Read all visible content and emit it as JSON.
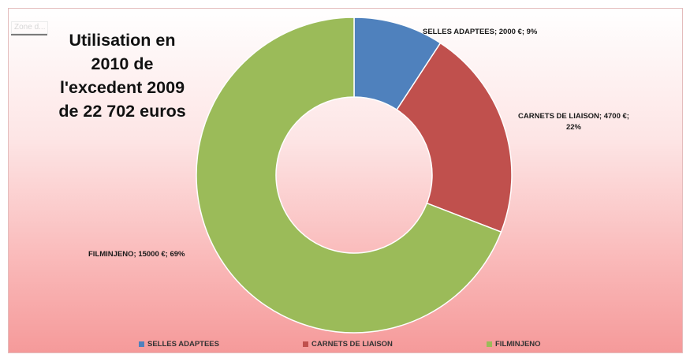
{
  "zone_label": "Zone d...",
  "chart_data": {
    "type": "donut",
    "title": "Utilisation en\n2010 de\nl'excedent 2009\nde 22 702 euros",
    "categories": [
      "SELLES ADAPTEES",
      "CARNETS DE LIAISON",
      "FILMINJENO"
    ],
    "values": [
      2000,
      4700,
      15000
    ],
    "percents": [
      9,
      22,
      69
    ],
    "colors": [
      "#4f81bd",
      "#c0504d",
      "#9bbb59"
    ],
    "data_labels": [
      "SELLES ADAPTEES;  2000 €; 9%",
      "CARNETS DE LIAISON; 4700 €;\n22%",
      "FILMINJENO; 15000 €; 69%"
    ],
    "legend": [
      "SELLES ADAPTEES",
      "CARNETS DE LIAISON",
      "FILMINJENO"
    ],
    "legend_position": "bottom"
  }
}
